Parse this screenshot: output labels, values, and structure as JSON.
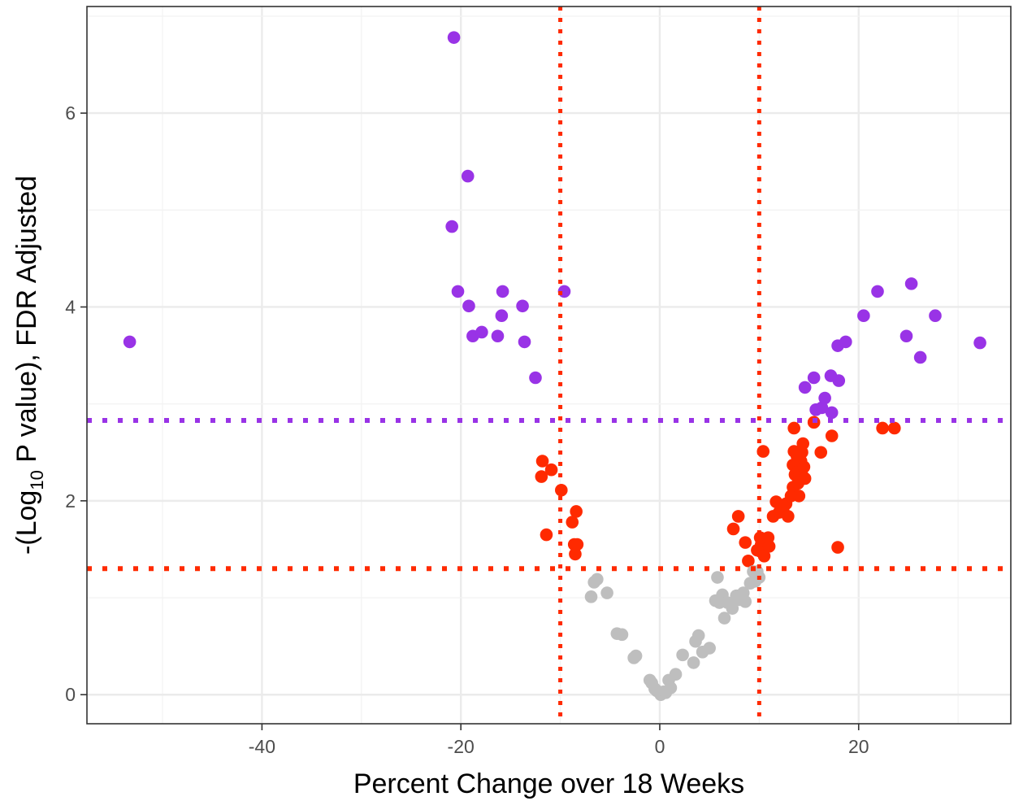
{
  "chart_data": {
    "type": "scatter",
    "title": "",
    "xlabel": "Percent Change over 18 Weeks",
    "ylabel": {
      "prefix": "-(Log",
      "subscript": "10",
      "suffix": " P value), FDR Adjusted"
    },
    "xlim": [
      -57.6,
      35.3
    ],
    "ylim": [
      -0.3,
      7.1
    ],
    "x_ticks": [
      -40,
      -20,
      0,
      20
    ],
    "x_tick_labels": [
      "-40",
      "-20",
      "0",
      "20"
    ],
    "y_ticks": [
      0,
      2,
      4,
      6
    ],
    "y_tick_labels": [
      "0",
      "2",
      "4",
      "6"
    ],
    "grid": true,
    "legend": "none",
    "colors": {
      "purple": "#9933e6",
      "red": "#ff2a00",
      "gray": "#bebebe",
      "vline": "#ff2a00",
      "hline_red": "#ff2a00",
      "hline_purple": "#9933e6",
      "grid_major": "#ebebeb",
      "grid_minor": "#f3f3f3",
      "panel_border": "#333333"
    },
    "reference_lines": {
      "vertical": [
        -10,
        10
      ],
      "horizontal": [
        {
          "y": 1.3,
          "color": "red"
        },
        {
          "y": 2.83,
          "color": "purple"
        }
      ]
    },
    "series": [
      {
        "color": "purple",
        "points": [
          [
            -53.3,
            3.64
          ],
          [
            -20.7,
            6.78
          ],
          [
            -19.3,
            5.35
          ],
          [
            -20.9,
            4.83
          ],
          [
            -20.3,
            4.16
          ],
          [
            -19.2,
            4.01
          ],
          [
            -18.8,
            3.7
          ],
          [
            -17.9,
            3.74
          ],
          [
            -16.3,
            3.7
          ],
          [
            -15.8,
            4.16
          ],
          [
            -15.9,
            3.91
          ],
          [
            -13.8,
            4.01
          ],
          [
            -13.6,
            3.64
          ],
          [
            -12.5,
            3.27
          ],
          [
            -9.6,
            4.16
          ],
          [
            14.6,
            3.17
          ],
          [
            15.5,
            3.27
          ],
          [
            15.7,
            2.94
          ],
          [
            16.3,
            2.96
          ],
          [
            16.6,
            3.06
          ],
          [
            17.2,
            3.29
          ],
          [
            17.3,
            2.91
          ],
          [
            17.9,
            3.6
          ],
          [
            18.0,
            3.24
          ],
          [
            18.7,
            3.64
          ],
          [
            20.5,
            3.91
          ],
          [
            21.9,
            4.16
          ],
          [
            24.8,
            3.7
          ],
          [
            25.3,
            4.24
          ],
          [
            26.2,
            3.48
          ],
          [
            27.7,
            3.91
          ],
          [
            32.2,
            3.63
          ]
        ]
      },
      {
        "color": "red",
        "points": [
          [
            -11.8,
            2.41
          ],
          [
            -11.9,
            2.25
          ],
          [
            -10.9,
            2.32
          ],
          [
            -11.4,
            1.65
          ],
          [
            -9.9,
            2.11
          ],
          [
            -8.8,
            1.78
          ],
          [
            -8.4,
            1.89
          ],
          [
            -8.6,
            1.55
          ],
          [
            -8.3,
            1.55
          ],
          [
            -8.5,
            1.45
          ],
          [
            7.4,
            1.71
          ],
          [
            7.9,
            1.84
          ],
          [
            8.6,
            1.57
          ],
          [
            8.9,
            1.38
          ],
          [
            9.8,
            1.49
          ],
          [
            10.1,
            1.62
          ],
          [
            10.2,
            1.55
          ],
          [
            10.4,
            2.51
          ],
          [
            10.5,
            1.43
          ],
          [
            10.7,
            1.59
          ],
          [
            10.9,
            1.62
          ],
          [
            11.0,
            1.53
          ],
          [
            11.4,
            1.84
          ],
          [
            11.7,
            1.99
          ],
          [
            12.0,
            1.88
          ],
          [
            12.2,
            1.95
          ],
          [
            12.4,
            1.91
          ],
          [
            12.7,
            1.97
          ],
          [
            12.9,
            1.84
          ],
          [
            13.2,
            2.05
          ],
          [
            13.4,
            2.14
          ],
          [
            13.4,
            2.37
          ],
          [
            13.5,
            2.75
          ],
          [
            13.5,
            2.51
          ],
          [
            13.6,
            2.27
          ],
          [
            13.8,
            2.46
          ],
          [
            13.9,
            2.18
          ],
          [
            14.0,
            2.31
          ],
          [
            14.0,
            2.05
          ],
          [
            14.2,
            2.41
          ],
          [
            14.3,
            2.5
          ],
          [
            14.3,
            2.27
          ],
          [
            14.4,
            2.59
          ],
          [
            14.5,
            2.35
          ],
          [
            14.6,
            2.23
          ],
          [
            15.5,
            2.81
          ],
          [
            16.2,
            2.5
          ],
          [
            17.3,
            2.67
          ],
          [
            17.9,
            1.52
          ],
          [
            22.4,
            2.75
          ],
          [
            23.6,
            2.75
          ]
        ]
      },
      {
        "color": "gray",
        "points": [
          [
            -6.9,
            1.01
          ],
          [
            -6.6,
            1.16
          ],
          [
            -6.3,
            1.19
          ],
          [
            -5.3,
            1.05
          ],
          [
            -4.3,
            0.63
          ],
          [
            -3.8,
            0.62
          ],
          [
            -2.6,
            0.38
          ],
          [
            -2.4,
            0.4
          ],
          [
            -1.0,
            0.15
          ],
          [
            -0.8,
            0.12
          ],
          [
            -0.5,
            0.06
          ],
          [
            -0.3,
            0.04
          ],
          [
            0.0,
            0.02
          ],
          [
            0.1,
            0.0
          ],
          [
            0.4,
            0.03
          ],
          [
            0.6,
            0.02
          ],
          [
            0.9,
            0.15
          ],
          [
            1.1,
            0.07
          ],
          [
            1.6,
            0.21
          ],
          [
            2.3,
            0.41
          ],
          [
            3.4,
            0.33
          ],
          [
            3.6,
            0.55
          ],
          [
            3.9,
            0.61
          ],
          [
            4.3,
            0.44
          ],
          [
            5.0,
            0.48
          ],
          [
            5.6,
            0.97
          ],
          [
            5.8,
            1.21
          ],
          [
            6.0,
            0.95
          ],
          [
            6.3,
            1.03
          ],
          [
            6.5,
            0.79
          ],
          [
            6.8,
            0.95
          ],
          [
            7.3,
            0.89
          ],
          [
            7.7,
            1.02
          ],
          [
            8.0,
            0.98
          ],
          [
            8.4,
            1.05
          ],
          [
            8.6,
            0.96
          ],
          [
            9.1,
            1.15
          ],
          [
            9.4,
            1.27
          ],
          [
            9.8,
            1.27
          ],
          [
            10.0,
            1.21
          ],
          [
            9.6,
            1.17
          ]
        ]
      }
    ]
  }
}
